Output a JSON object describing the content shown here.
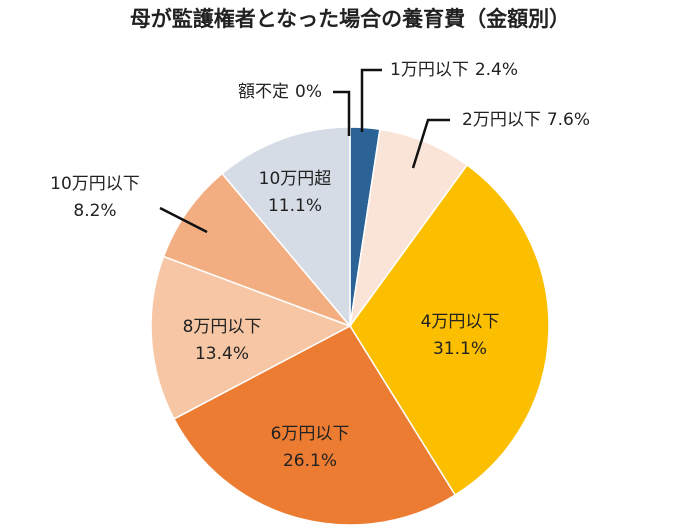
{
  "chart_data": {
    "type": "pie",
    "title": "母が監護権者となった場合の養育費（金額別）",
    "categories": [
      "1万円以下",
      "2万円以下",
      "4万円以下",
      "6万円以下",
      "8万円以下",
      "10万円以下",
      "10万円超",
      "額不定"
    ],
    "values": [
      2.4,
      7.6,
      31.1,
      26.1,
      13.4,
      8.2,
      11.1,
      0
    ],
    "value_labels": [
      "2.4%",
      "7.6%",
      "31.1%",
      "26.1%",
      "13.4%",
      "8.2%",
      "11.1%",
      "0%"
    ],
    "colors": [
      "#2b6396",
      "#fae4d8",
      "#fcbf00",
      "#ec7c32",
      "#f7c7a5",
      "#f2ae80",
      "#d6dce6",
      "#d6dce6"
    ]
  }
}
